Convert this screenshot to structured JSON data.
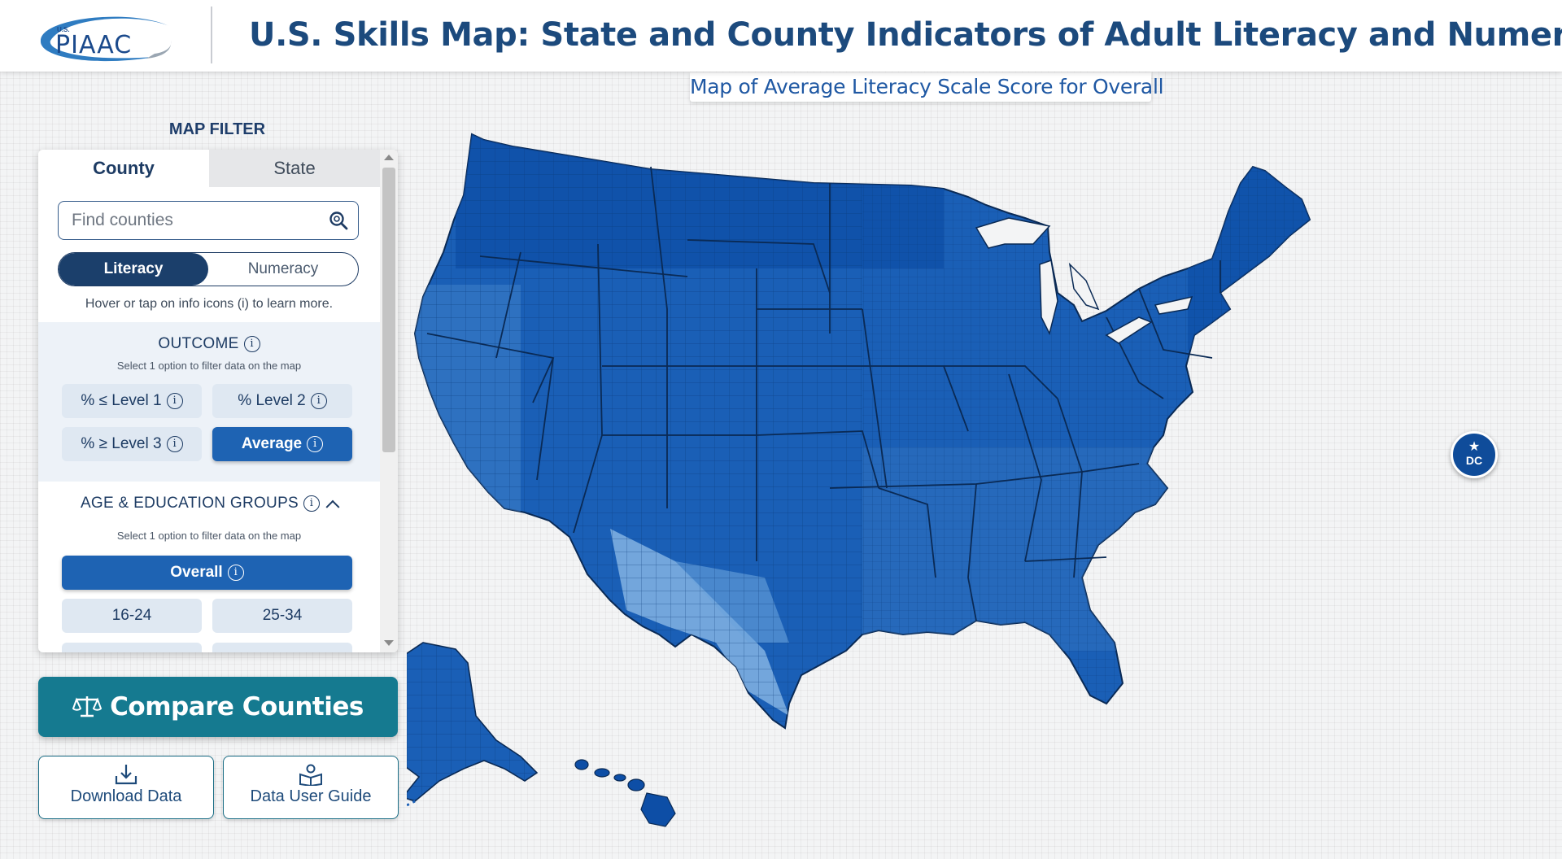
{
  "header": {
    "logo_superscript": "U.S.",
    "logo_text": "PIAAC",
    "title": "U.S. Skills Map: State and County Indicators of Adult Literacy and Numeracy"
  },
  "map": {
    "caption": "Map of Average Literacy Scale Score for Overall",
    "dc_label": "DC",
    "colors": {
      "dark": "#0d4ea6",
      "mid": "#1f63b8",
      "light": "#4d8ccf",
      "lightest": "#7fb0e0",
      "border": "#0a2a55"
    }
  },
  "filter": {
    "heading": "MAP FILTER",
    "tabs": [
      {
        "label": "County",
        "active": true
      },
      {
        "label": "State",
        "active": false
      }
    ],
    "search_placeholder": "Find counties",
    "skill_toggle": [
      {
        "label": "Literacy",
        "selected": true
      },
      {
        "label": "Numeracy",
        "selected": false
      }
    ],
    "hint": "Hover or tap on info icons (i) to learn more.",
    "outcome": {
      "title": "OUTCOME",
      "subtitle": "Select 1 option to filter data on the map",
      "options": [
        {
          "label": "% ≤ Level 1",
          "selected": false
        },
        {
          "label": "% Level 2",
          "selected": false
        },
        {
          "label": "% ≥ Level 3",
          "selected": false
        },
        {
          "label": "Average",
          "selected": true
        }
      ]
    },
    "groups": {
      "title": "AGE & EDUCATION GROUPS",
      "subtitle": "Select 1 option to filter data on the map",
      "options": [
        {
          "label": "Overall",
          "selected": true
        },
        {
          "label": "16-24",
          "selected": false
        },
        {
          "label": "25-34",
          "selected": false
        }
      ]
    }
  },
  "actions": {
    "compare": "Compare Counties",
    "download": "Download Data",
    "guide": "Data User Guide"
  }
}
